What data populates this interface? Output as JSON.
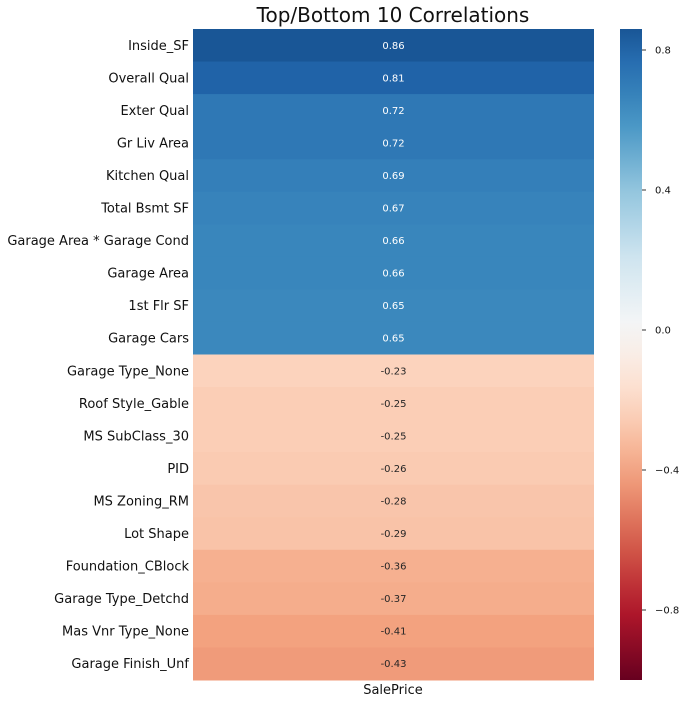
{
  "chart_data": {
    "type": "heatmap",
    "title": "Top/Bottom 10 Correlations",
    "column": "SalePrice",
    "rows": [
      {
        "label": "Inside_SF",
        "value": 0.86,
        "text": "0.86"
      },
      {
        "label": "Overall Qual",
        "value": 0.81,
        "text": "0.81"
      },
      {
        "label": "Exter Qual",
        "value": 0.72,
        "text": "0.72"
      },
      {
        "label": "Gr Liv Area",
        "value": 0.72,
        "text": "0.72"
      },
      {
        "label": "Kitchen Qual",
        "value": 0.69,
        "text": "0.69"
      },
      {
        "label": "Total Bsmt SF",
        "value": 0.67,
        "text": "0.67"
      },
      {
        "label": "Garage Area * Garage Cond",
        "value": 0.66,
        "text": "0.66"
      },
      {
        "label": "Garage Area",
        "value": 0.66,
        "text": "0.66"
      },
      {
        "label": "1st Flr SF",
        "value": 0.65,
        "text": "0.65"
      },
      {
        "label": "Garage Cars",
        "value": 0.65,
        "text": "0.65"
      },
      {
        "label": "Garage Type_None",
        "value": -0.23,
        "text": "-0.23"
      },
      {
        "label": "Roof Style_Gable",
        "value": -0.25,
        "text": "-0.25"
      },
      {
        "label": "MS SubClass_30",
        "value": -0.25,
        "text": "-0.25"
      },
      {
        "label": "PID",
        "value": -0.26,
        "text": "-0.26"
      },
      {
        "label": "MS Zoning_RM",
        "value": -0.28,
        "text": "-0.28"
      },
      {
        "label": "Lot Shape",
        "value": -0.29,
        "text": "-0.29"
      },
      {
        "label": "Foundation_CBlock",
        "value": -0.36,
        "text": "-0.36"
      },
      {
        "label": "Garage Type_Detchd",
        "value": -0.37,
        "text": "-0.37"
      },
      {
        "label": "Mas Vnr Type_None",
        "value": -0.41,
        "text": "-0.41"
      },
      {
        "label": "Garage Finish_Unf",
        "value": -0.43,
        "text": "-0.43"
      }
    ],
    "colorbar": {
      "colormap": "RdBu",
      "vmin": -1,
      "vmax": 0.86,
      "ticks": [
        {
          "value": 0.8,
          "label": "0.8"
        },
        {
          "value": 0.4,
          "label": "0.4"
        },
        {
          "value": 0.0,
          "label": "0.0"
        },
        {
          "value": -0.4,
          "label": "−0.4"
        },
        {
          "value": -0.8,
          "label": "−0.8"
        }
      ]
    }
  }
}
